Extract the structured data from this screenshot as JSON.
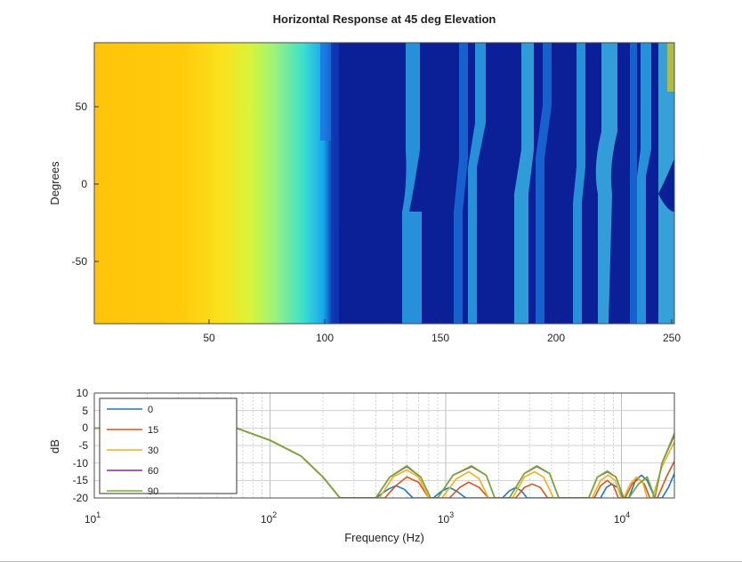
{
  "chart_data": [
    {
      "type": "heatmap",
      "title": "Horizontal Response at 45 deg Elevation",
      "xlabel": "",
      "ylabel": "Degrees",
      "xlim": [
        0,
        250
      ],
      "ylim": [
        -90,
        90
      ],
      "xticks": [
        "50",
        "100",
        "150",
        "200",
        "250"
      ],
      "yticks": [
        "50",
        "0",
        "-50"
      ],
      "colormap": "parula",
      "colors": {
        "low": "#0f1e8a",
        "high": "#ffc107"
      },
      "grid": false
    },
    {
      "type": "line",
      "title": "",
      "xlabel": "Frequency (Hz)",
      "ylabel": "dB",
      "x_scale": "log",
      "xlim": [
        10,
        20000
      ],
      "ylim": [
        -20,
        10
      ],
      "xticks": [
        {
          "base": "10",
          "exp": "1"
        },
        {
          "base": "10",
          "exp": "2"
        },
        {
          "base": "10",
          "exp": "3"
        },
        {
          "base": "10",
          "exp": "4"
        }
      ],
      "yticks": [
        "10",
        "5",
        "0",
        "-5",
        "-10",
        "-15",
        "-20"
      ],
      "grid": true,
      "legend_position": "top-left",
      "series": [
        {
          "name": "0",
          "color": "#1f77c4",
          "x": [
            10,
            64,
            100,
            150,
            200,
            250,
            400,
            470,
            520,
            580,
            650,
            850,
            950,
            1050,
            1150,
            1300,
            2100,
            2300,
            2500,
            2700,
            2900,
            7600,
            8200,
            8800,
            9500,
            10200,
            11000,
            12000,
            13000,
            14000,
            15500,
            17000,
            18500,
            20000
          ],
          "y": [
            0,
            0,
            -3.5,
            -8,
            -14,
            -20,
            -20,
            -17.5,
            -16.5,
            -17.5,
            -20,
            -20,
            -18,
            -17,
            -18,
            -20,
            -20,
            -18,
            -17,
            -18,
            -20,
            -20,
            -17,
            -16,
            -17,
            -20,
            -20,
            -15,
            -13.5,
            -15,
            -20,
            -20,
            -17,
            -13
          ]
        },
        {
          "name": "15",
          "color": "#d95319",
          "x": [
            10,
            64,
            100,
            150,
            200,
            250,
            450,
            520,
            600,
            700,
            800,
            1050,
            1200,
            1350,
            1550,
            1750,
            2500,
            2800,
            3100,
            3450,
            3800,
            7000,
            7600,
            8300,
            9000,
            9600,
            10500,
            11500,
            12500,
            13500,
            14500,
            16000,
            18000,
            20000
          ],
          "y": [
            0,
            0,
            -3.5,
            -8,
            -14,
            -20,
            -20,
            -16.5,
            -14,
            -15.5,
            -20,
            -20,
            -17,
            -15.5,
            -17,
            -20,
            -20,
            -17,
            -16,
            -17,
            -20,
            -20,
            -16.5,
            -15,
            -16.5,
            -20,
            -20,
            -16,
            -14.5,
            -16,
            -20,
            -20,
            -14,
            -9.5
          ]
        },
        {
          "name": "30",
          "color": "#edb120",
          "x": [
            10,
            64,
            100,
            150,
            200,
            250,
            420,
            500,
            600,
            700,
            800,
            950,
            1150,
            1350,
            1550,
            1750,
            2400,
            2800,
            3200,
            3600,
            4100,
            6800,
            7600,
            8400,
            9200,
            10000,
            10300,
            11200,
            12200,
            13200,
            14000,
            15000,
            17000,
            20000
          ],
          "y": [
            0,
            0,
            -3.5,
            -8,
            -14,
            -20,
            -20,
            -14,
            -12,
            -14,
            -20,
            -20,
            -14.5,
            -12.5,
            -14.5,
            -20,
            -20,
            -14,
            -12.5,
            -14,
            -20,
            -20,
            -15,
            -13.5,
            -15,
            -20,
            -20,
            -16,
            -14,
            -15.5,
            -20,
            -20,
            -11,
            -4
          ]
        },
        {
          "name": "60",
          "color": "#7e2f8e",
          "x": [
            10,
            64,
            100,
            150,
            200,
            250,
            400,
            480,
            600,
            720,
            820,
            900,
            1100,
            1400,
            1700,
            1900,
            2300,
            2800,
            3300,
            3900,
            4400,
            6500,
            7300,
            8300,
            9300,
            10300,
            11000,
            12500,
            14000,
            15500,
            17000,
            20000
          ],
          "y": [
            0,
            0,
            -3.5,
            -8,
            -14,
            -20,
            -20,
            -14,
            -11,
            -14,
            -20,
            -20,
            -13.5,
            -11,
            -13.5,
            -20,
            -20,
            -13,
            -11,
            -13,
            -20,
            -20,
            -14,
            -12.5,
            -14,
            -20,
            -20,
            -16,
            -14,
            -20,
            -10,
            -2
          ]
        },
        {
          "name": "90",
          "color": "#77ac30",
          "x": [
            10,
            64,
            100,
            150,
            200,
            250,
            400,
            480,
            600,
            720,
            820,
            900,
            1100,
            1400,
            1700,
            1900,
            2300,
            2800,
            3300,
            3900,
            4400,
            6500,
            7300,
            8300,
            9300,
            10300,
            11000,
            12500,
            14000,
            15500,
            17000,
            20000
          ],
          "y": [
            0,
            0,
            -3.5,
            -8,
            -14,
            -20,
            -20,
            -14,
            -10.8,
            -14,
            -20,
            -20,
            -13.5,
            -10.8,
            -13.5,
            -20,
            -20,
            -13,
            -10.8,
            -13,
            -20,
            -20,
            -14,
            -12.3,
            -14,
            -20,
            -20,
            -16,
            -14,
            -20,
            -10,
            -1.5
          ]
        }
      ]
    }
  ]
}
